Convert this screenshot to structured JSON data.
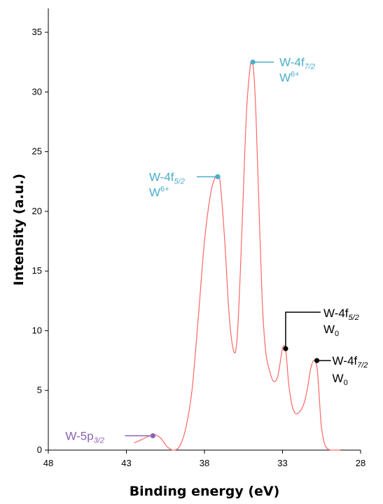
{
  "chart_data": {
    "type": "line",
    "title": "",
    "xlabel": "Binding energy (eV)",
    "ylabel": "Intensity (a.u.)",
    "xlim": [
      48,
      28
    ],
    "ylim": [
      0,
      37
    ],
    "x_ticks": [
      "48",
      "43",
      "38",
      "33",
      "28"
    ],
    "y_ticks": [
      "0",
      "5",
      "10",
      "15",
      "20",
      "25",
      "30",
      "35"
    ],
    "grid": false,
    "line_color": "#ff6666",
    "series": [
      {
        "x": [
          42.5,
          42.0,
          41.5,
          41.2,
          40.8,
          40.4,
          40.0,
          39.6,
          39.2,
          38.8,
          38.4,
          38.0,
          37.6,
          37.3,
          37.15,
          37.0,
          36.7,
          36.4,
          36.1,
          35.9,
          35.7,
          35.5,
          35.3,
          35.1,
          35.0,
          34.85,
          34.7,
          34.5,
          34.3,
          34.1,
          33.9,
          33.6,
          33.3,
          33.0,
          32.8,
          32.6,
          32.4,
          32.2,
          32.0,
          31.8,
          31.6,
          31.4,
          31.2,
          31.0,
          30.8,
          30.7,
          30.6,
          30.5,
          30.3,
          30.1,
          29.9,
          29.7,
          29.5,
          29.3
        ],
        "y": [
          0.6,
          0.9,
          1.2,
          1.3,
          1.0,
          0.3,
          0.0,
          0.3,
          1.8,
          5.0,
          11.0,
          17.5,
          21.5,
          22.9,
          22.9,
          22.5,
          17.5,
          11.0,
          8.2,
          9.5,
          15.0,
          22.0,
          28.5,
          31.8,
          32.5,
          31.8,
          28.0,
          20.0,
          12.5,
          8.5,
          7.0,
          5.8,
          6.2,
          8.5,
          8.4,
          5.5,
          3.8,
          3.1,
          3.1,
          3.4,
          4.0,
          5.2,
          6.8,
          7.5,
          7.0,
          5.5,
          3.5,
          1.8,
          0.5,
          0.1,
          0.0,
          0.0,
          0.0,
          0.0
        ]
      }
    ],
    "annotations": [
      {
        "main": "W-4f",
        "sub": "7/2",
        "line2": "W",
        "line2_sup": "6+",
        "color": "#4aaec9",
        "point": [
          34.9,
          32.5
        ]
      },
      {
        "main": "W-4f",
        "sub": "5/2",
        "line2": "W",
        "line2_sup": "6+",
        "color": "#4aaec9",
        "point": [
          37.15,
          22.9
        ]
      },
      {
        "main": "W-4f",
        "sub": "5/2",
        "line2": "W",
        "line2_sub": "0",
        "color": "#000000",
        "point": [
          32.8,
          8.5
        ]
      },
      {
        "main": "W-4f",
        "sub": "7/2",
        "line2": "W",
        "line2_sub": "0",
        "color": "#000000",
        "point": [
          30.8,
          7.5
        ]
      },
      {
        "main": "W-5p",
        "sub": "3/2",
        "line2": "",
        "color": "#8a64b0",
        "point": [
          41.3,
          1.2
        ]
      }
    ]
  }
}
